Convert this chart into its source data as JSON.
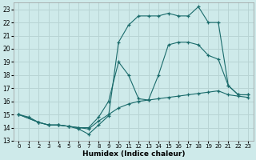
{
  "xlabel": "Humidex (Indice chaleur)",
  "xlim": [
    -0.5,
    23.5
  ],
  "ylim": [
    13,
    23.5
  ],
  "xticks": [
    0,
    1,
    2,
    3,
    4,
    5,
    6,
    7,
    8,
    9,
    10,
    11,
    12,
    13,
    14,
    15,
    16,
    17,
    18,
    19,
    20,
    21,
    22,
    23
  ],
  "yticks": [
    13,
    14,
    15,
    16,
    17,
    18,
    19,
    20,
    21,
    22,
    23
  ],
  "bg_color": "#ceeaea",
  "grid_color": "#b8d4d4",
  "line_color": "#1a6b6b",
  "line1_x": [
    0,
    1,
    2,
    3,
    4,
    5,
    6,
    7,
    8,
    9,
    10,
    11,
    12,
    13,
    14,
    15,
    16,
    17,
    18,
    19,
    20,
    21,
    22,
    23
  ],
  "line1_y": [
    15.0,
    14.8,
    14.4,
    14.2,
    14.2,
    14.1,
    14.0,
    13.9,
    14.5,
    15.0,
    15.5,
    15.8,
    16.0,
    16.1,
    16.2,
    16.3,
    16.4,
    16.5,
    16.6,
    16.7,
    16.8,
    16.5,
    16.4,
    16.3
  ],
  "line2_x": [
    0,
    2,
    3,
    4,
    5,
    6,
    7,
    8,
    9,
    10,
    11,
    12,
    13,
    14,
    15,
    16,
    17,
    18,
    19,
    20,
    21,
    22,
    23
  ],
  "line2_y": [
    15.0,
    14.4,
    14.2,
    14.2,
    14.1,
    14.0,
    14.0,
    14.8,
    16.0,
    19.0,
    18.0,
    16.2,
    16.1,
    18.0,
    20.3,
    20.5,
    20.5,
    20.3,
    19.5,
    19.2,
    17.2,
    16.5,
    16.5
  ],
  "line3_x": [
    0,
    2,
    3,
    4,
    5,
    6,
    7,
    8,
    9,
    10,
    11,
    12,
    13,
    14,
    15,
    16,
    17,
    18,
    19,
    20,
    21,
    22,
    23
  ],
  "line3_y": [
    15.0,
    14.4,
    14.2,
    14.2,
    14.1,
    13.9,
    13.5,
    14.2,
    14.9,
    20.5,
    21.8,
    22.5,
    22.5,
    22.5,
    22.7,
    22.5,
    22.5,
    23.2,
    22.0,
    22.0,
    17.2,
    16.5,
    16.5
  ]
}
